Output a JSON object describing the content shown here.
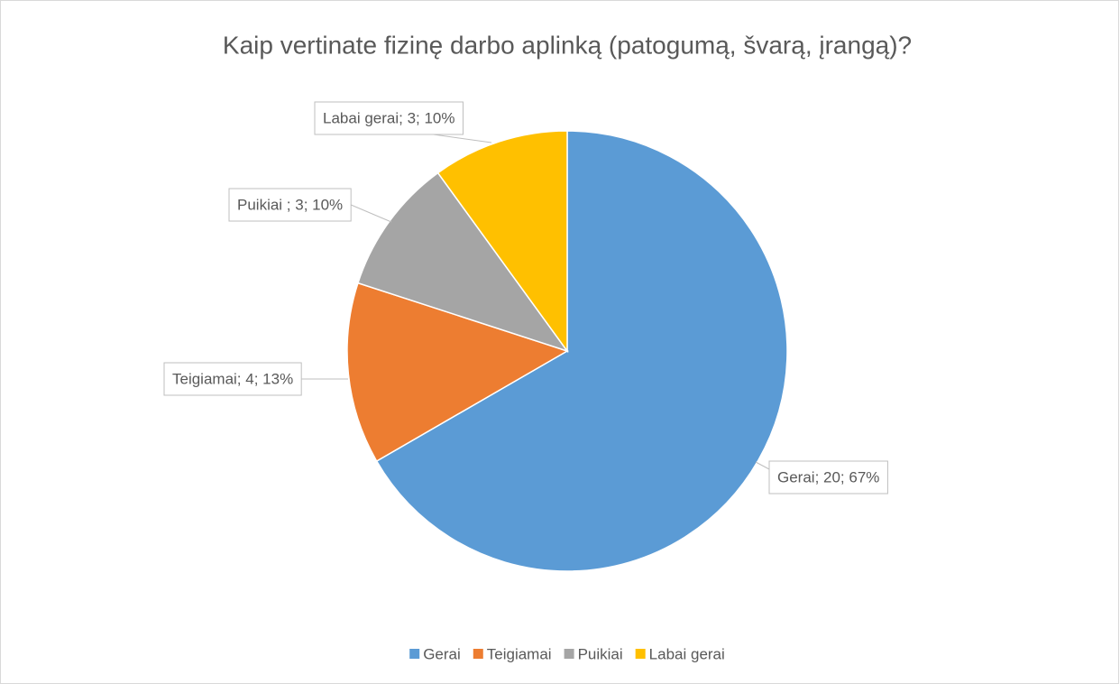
{
  "chart_data": {
    "type": "pie",
    "title": "Kaip vertinate fizinę darbo aplinką (patogumą, švarą, įrangą)?",
    "categories": [
      "Gerai",
      "Teigiamai",
      "Puikiai",
      "Labai gerai"
    ],
    "values": [
      20,
      4,
      3,
      3
    ],
    "value_labels": [
      "Gerai; 20; 67%",
      "Teigiamai; 4; 13%",
      "Puikiai ; 3; 10%",
      "Labai gerai; 3; 10%"
    ],
    "colors": [
      "#5b9bd5",
      "#ed7d31",
      "#a5a5a5",
      "#ffc000"
    ],
    "legend": "bottom"
  }
}
